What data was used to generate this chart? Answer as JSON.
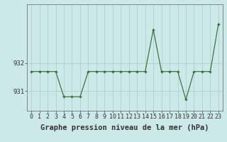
{
  "xlabel": "Graphe pression niveau de la mer (hPa)",
  "x_values": [
    0,
    1,
    2,
    3,
    4,
    5,
    6,
    7,
    8,
    9,
    10,
    11,
    12,
    13,
    14,
    15,
    16,
    17,
    18,
    19,
    20,
    21,
    22,
    23
  ],
  "y_values": [
    931.7,
    931.7,
    931.7,
    931.7,
    930.8,
    930.8,
    930.8,
    931.7,
    931.7,
    931.7,
    931.7,
    931.7,
    931.7,
    931.7,
    931.7,
    933.2,
    931.7,
    931.7,
    931.7,
    930.7,
    931.7,
    931.7,
    931.7,
    933.4
  ],
  "line_color": "#2d6a2d",
  "marker_color": "#2d6a2d",
  "bg_color": "#cce8e8",
  "grid_color": "#b0d0d0",
  "ylim_min": 930.3,
  "ylim_max": 934.1,
  "yticks": [
    931,
    932
  ],
  "xtick_labels": [
    "0",
    "1",
    "2",
    "3",
    "4",
    "5",
    "6",
    "7",
    "8",
    "9",
    "10",
    "11",
    "12",
    "13",
    "14",
    "15",
    "16",
    "17",
    "18",
    "19",
    "20",
    "21",
    "22",
    "23"
  ],
  "label_fontsize": 6.5,
  "xlabel_fontsize": 7.5
}
